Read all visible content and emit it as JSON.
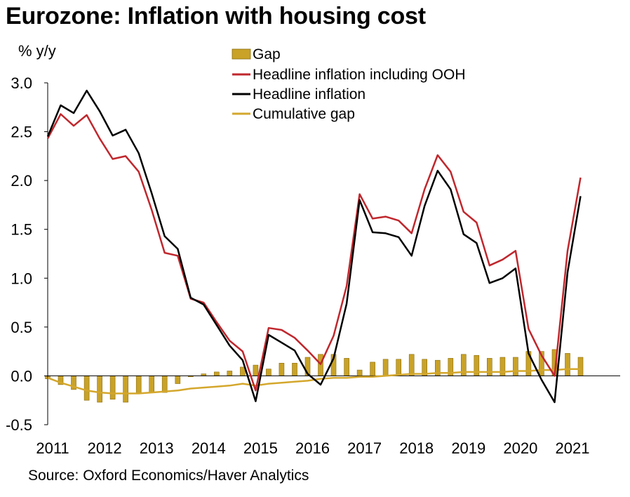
{
  "chart_data": {
    "type": "bar+line",
    "title": "Eurozone: Inflation with housing cost",
    "ylabel": "% y/y",
    "source": "Source: Oxford Economics/Haver Analytics",
    "ylim": [
      -0.5,
      3.0
    ],
    "yticks": [
      "3.0",
      "2.5",
      "2.0",
      "1.5",
      "1.0",
      "0.5",
      "0.0",
      "-0.5"
    ],
    "ytick_values": [
      3.0,
      2.5,
      2.0,
      1.5,
      1.0,
      0.5,
      0.0,
      -0.5
    ],
    "xlabels": [
      "2011",
      "2012",
      "2013",
      "2014",
      "2015",
      "2016",
      "2017",
      "2018",
      "2019",
      "2020",
      "2021"
    ],
    "x_start": 2011.0,
    "x_step": 0.25,
    "legend": {
      "gap": "Gap",
      "ooh": "Headline inflation including OOH",
      "headline": "Headline inflation",
      "cumulative": "Cumulative gap"
    },
    "colors": {
      "gap": "#c9a227",
      "gap_stroke": "#8a6d10",
      "ooh": "#c0272d",
      "headline": "#000000",
      "cumulative": "#d4a72c",
      "axis": "#000000"
    },
    "series": [
      {
        "name": "Headline inflation including OOH",
        "values": [
          2.43,
          2.68,
          2.56,
          2.67,
          2.43,
          2.22,
          2.25,
          2.09,
          1.7,
          1.26,
          1.23,
          0.79,
          0.75,
          0.55,
          0.36,
          0.25,
          -0.15,
          0.49,
          0.47,
          0.39,
          0.26,
          0.12,
          0.41,
          0.92,
          1.86,
          1.61,
          1.63,
          1.59,
          1.46,
          1.91,
          2.26,
          2.09,
          1.68,
          1.57,
          1.13,
          1.19,
          1.28,
          0.48,
          0.21,
          0.0,
          1.28,
          2.03
        ]
      },
      {
        "name": "Headline inflation",
        "values": [
          2.45,
          2.77,
          2.69,
          2.92,
          2.71,
          2.46,
          2.52,
          2.28,
          1.87,
          1.43,
          1.3,
          0.8,
          0.73,
          0.52,
          0.31,
          0.16,
          -0.26,
          0.42,
          0.34,
          0.26,
          0.02,
          -0.09,
          0.18,
          0.74,
          1.8,
          1.47,
          1.46,
          1.42,
          1.23,
          1.74,
          2.1,
          1.91,
          1.45,
          1.36,
          0.95,
          1.0,
          1.1,
          0.23,
          -0.04,
          -0.27,
          1.06,
          1.84
        ]
      },
      {
        "name": "Gap",
        "values": [
          -0.03,
          -0.09,
          -0.14,
          -0.25,
          -0.27,
          -0.24,
          -0.27,
          -0.18,
          -0.17,
          -0.17,
          -0.08,
          -0.01,
          0.02,
          0.04,
          0.05,
          0.09,
          0.11,
          0.07,
          0.13,
          0.13,
          0.19,
          0.22,
          0.22,
          0.18,
          0.06,
          0.14,
          0.17,
          0.17,
          0.22,
          0.17,
          0.16,
          0.18,
          0.22,
          0.21,
          0.18,
          0.19,
          0.19,
          0.25,
          0.25,
          0.27,
          0.23,
          0.19
        ]
      },
      {
        "name": "Cumulative gap",
        "values": [
          -0.02,
          -0.07,
          -0.11,
          -0.15,
          -0.17,
          -0.18,
          -0.18,
          -0.18,
          -0.17,
          -0.16,
          -0.15,
          -0.13,
          -0.12,
          -0.11,
          -0.1,
          -0.08,
          -0.1,
          -0.08,
          -0.07,
          -0.06,
          -0.05,
          -0.03,
          -0.02,
          -0.02,
          -0.01,
          -0.01,
          0.0,
          0.01,
          0.02,
          0.02,
          0.03,
          0.03,
          0.04,
          0.04,
          0.04,
          0.04,
          0.05,
          0.05,
          0.06,
          0.06,
          0.07,
          0.07
        ]
      }
    ]
  }
}
